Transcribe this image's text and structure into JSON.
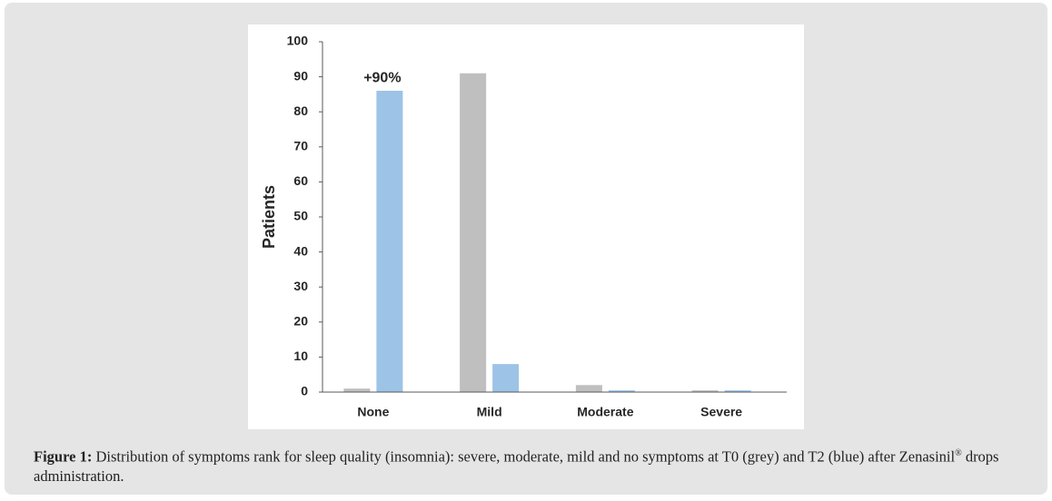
{
  "chart_data": {
    "type": "bar",
    "ylabel": "Patients",
    "categories": [
      "None",
      "Mild",
      "Moderate",
      "Severe"
    ],
    "series": [
      {
        "color": "#bfbfbf",
        "values": [
          1,
          91,
          2,
          0.5
        ]
      },
      {
        "color": "#9dc3e6",
        "values": [
          86,
          8,
          0.5,
          0.5
        ]
      }
    ],
    "ylim": [
      0,
      100
    ],
    "yticks": [
      0,
      10,
      20,
      30,
      40,
      50,
      60,
      70,
      80,
      90,
      100
    ],
    "grid": false,
    "annotation": "+90%"
  },
  "caption": {
    "label": "Figure 1:",
    "text": "Distribution of symptoms rank for sleep quality (insomnia): severe, moderate, mild and no symptoms at T0 (grey) and T2 (blue) after Zenasinil",
    "superscript": "®",
    "text_after": " drops administration."
  }
}
